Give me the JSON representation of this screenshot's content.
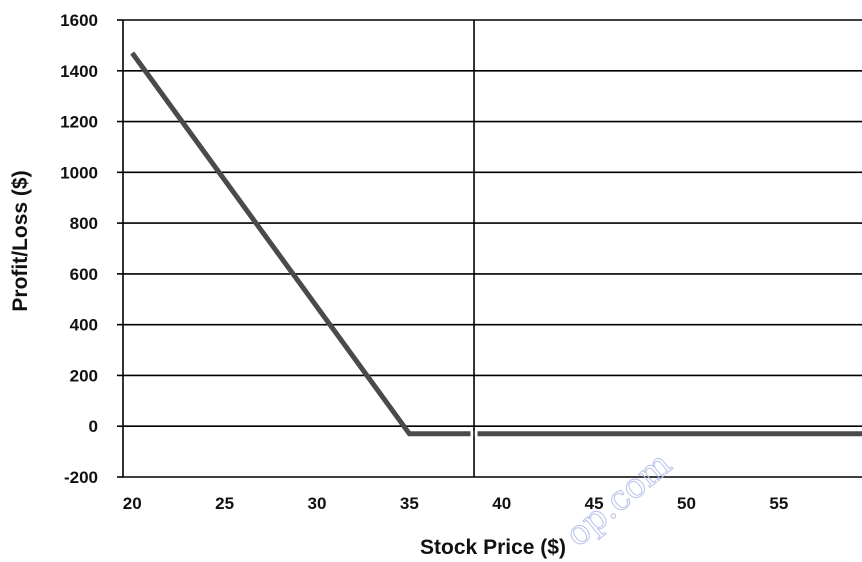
{
  "chart_data": {
    "type": "line",
    "title": "",
    "xlabel": "Stock Price ($)",
    "ylabel": "Profit/Loss ($)",
    "xlim": [
      19.5,
      59.5
    ],
    "ylim": [
      -200,
      1600
    ],
    "x_ticks": [
      "20",
      "25",
      "30",
      "35",
      "40",
      "45",
      "50",
      "55"
    ],
    "y_ticks": [
      "1600",
      "1400",
      "1200",
      "1000",
      "800",
      "600",
      "400",
      "200",
      "0",
      "-200"
    ],
    "grid": "horizontal",
    "series": [
      {
        "x": [
          20,
          35,
          59.5
        ],
        "y": [
          1470,
          -30,
          -30
        ],
        "color": "#4a4a4a"
      }
    ],
    "vertical_marker_x": 38.5,
    "watermark": "op.com"
  }
}
